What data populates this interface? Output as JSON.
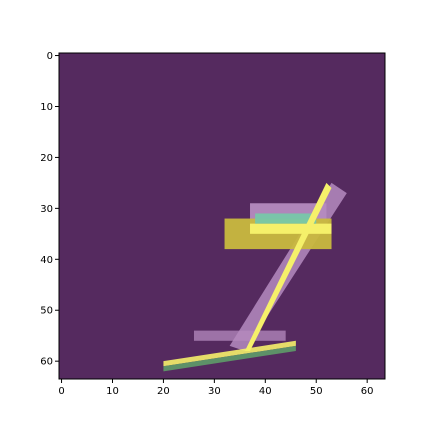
{
  "chart_data": {
    "type": "heatmap",
    "title": "",
    "xlabel": "",
    "ylabel": "",
    "xlim": [
      -0.5,
      63.5
    ],
    "ylim": [
      63.5,
      -0.5
    ],
    "xticks": [
      0,
      10,
      20,
      30,
      40,
      50,
      60
    ],
    "yticks": [
      0,
      10,
      20,
      30,
      40,
      50,
      60
    ],
    "xtick_labels": [
      "0",
      "10",
      "20",
      "30",
      "40",
      "50",
      "60"
    ],
    "ytick_labels": [
      "0",
      "10",
      "20",
      "30",
      "40",
      "50",
      "60"
    ],
    "grid": false,
    "legend": "none",
    "colors": {
      "background": "#552a5f",
      "soft_highlight": "#b58bbf",
      "mid_highlight": "#d6b7d7",
      "bright": "#f5f06a",
      "gold": "#c9b93e",
      "teal": "#77c7a9",
      "green": "#5fa36a"
    },
    "overlays": [
      {
        "name": "upper-bar-glow",
        "type": "rect",
        "x0": 37,
        "x1": 52,
        "y0": 29,
        "y1": 33,
        "color": "#b58bbf",
        "opacity": 0.95
      },
      {
        "name": "stroke-glow",
        "type": "polygon",
        "points": [
          [
            33,
            57
          ],
          [
            36,
            58
          ],
          [
            56,
            27
          ],
          [
            53,
            25
          ]
        ],
        "color": "#b58bbf",
        "opacity": 0.85
      },
      {
        "name": "lower-bar-glow",
        "type": "rect",
        "x0": 26,
        "x1": 44,
        "y0": 54,
        "y1": 56,
        "color": "#b58bbf",
        "opacity": 0.75
      },
      {
        "name": "gold-block",
        "type": "rect",
        "x0": 32,
        "x1": 53,
        "y0": 32,
        "y1": 38,
        "color": "#c9b93e",
        "opacity": 0.95
      },
      {
        "name": "bright-band",
        "type": "rect",
        "x0": 37,
        "x1": 53,
        "y0": 33,
        "y1": 35,
        "color": "#f5f06a",
        "opacity": 1
      },
      {
        "name": "teal-band",
        "type": "rect",
        "x0": 38,
        "x1": 50,
        "y0": 31,
        "y1": 33,
        "color": "#77c7a9",
        "opacity": 0.95
      },
      {
        "name": "diagonal-core",
        "type": "polygon",
        "points": [
          [
            36,
            58
          ],
          [
            37,
            58
          ],
          [
            53,
            26
          ],
          [
            52,
            25
          ]
        ],
        "color": "#f5f06a",
        "opacity": 1
      },
      {
        "name": "bottom-stroke-core",
        "type": "polygon",
        "points": [
          [
            20,
            60
          ],
          [
            20,
            61
          ],
          [
            46,
            57
          ],
          [
            46,
            56
          ]
        ],
        "color": "#f5f06a",
        "opacity": 0.9
      },
      {
        "name": "bottom-stroke-green",
        "type": "polygon",
        "points": [
          [
            20,
            61
          ],
          [
            20,
            62
          ],
          [
            46,
            58
          ],
          [
            46,
            57
          ]
        ],
        "color": "#5fa36a",
        "opacity": 0.85
      }
    ]
  }
}
